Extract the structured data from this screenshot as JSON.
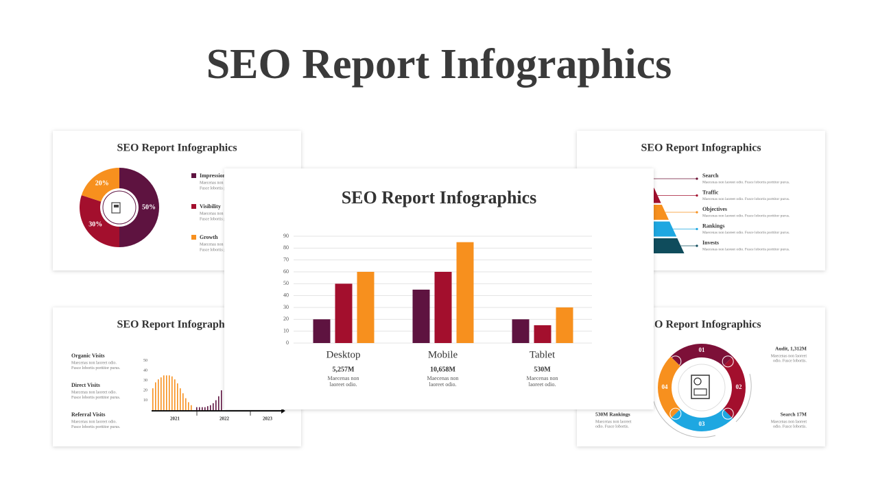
{
  "title": "SEO Report Infographics",
  "chart_data": [
    {
      "type": "bar",
      "title": "SEO Report Infographics",
      "categories": [
        "Desktop",
        "Mobile",
        "Tablet"
      ],
      "totals": [
        "5,257M",
        "10,658M",
        "530M"
      ],
      "notes": [
        [
          "Maecenas non",
          "laoreet odio."
        ],
        [
          "Maecenas non",
          "laoreet odio."
        ],
        [
          "Maecenas non",
          "laoreet odio."
        ]
      ],
      "series": [
        {
          "color": "#5e1340",
          "values": [
            20,
            45,
            20
          ]
        },
        {
          "color": "#a30f2d",
          "values": [
            50,
            60,
            15
          ]
        },
        {
          "color": "#f7901e",
          "values": [
            60,
            85,
            30
          ]
        }
      ],
      "ylim": [
        0,
        90
      ],
      "yticks": [
        0,
        10,
        20,
        30,
        40,
        50,
        60,
        70,
        80,
        90
      ],
      "grid": true
    },
    {
      "type": "pie",
      "title": "SEO Report Infographics",
      "categories": [
        "Impressions",
        "Visibility",
        "Growth"
      ],
      "values": [
        50,
        30,
        20
      ],
      "value_labels": [
        "50%",
        "30%",
        "20%"
      ],
      "colors": [
        "#5e1340",
        "#a30f2d",
        "#f7901e"
      ],
      "descriptions": [
        [
          "Maecenas non laoreet odio.",
          "Fusce lobortis porttitor purus."
        ],
        [
          "Maecenas non laoreet odio.",
          "Fusce lobortis porttitor purus."
        ],
        [
          "Maecenas non laoreet odio.",
          "Fusce lobortis porttitor purus."
        ]
      ]
    },
    {
      "type": "bar",
      "title": "SEO Report Infographics",
      "series": [
        {
          "color": "#f7901e",
          "values": [
            22,
            28,
            31,
            33,
            35,
            35,
            35,
            34,
            31,
            27,
            22,
            17,
            12,
            8,
            5
          ]
        },
        {
          "color": "#5e1340",
          "values": [
            3,
            3,
            3,
            3,
            4,
            5,
            7,
            10,
            14,
            20
          ]
        }
      ],
      "ylim": [
        0,
        50
      ],
      "yticks": [
        10,
        20,
        30,
        40,
        50
      ],
      "years": [
        "2021",
        "2022",
        "2023"
      ],
      "legend": [
        {
          "name": "Organic Visits",
          "text": [
            "Maecenas non laoreet odio.",
            "Fusce lobortis porttitor purus."
          ]
        },
        {
          "name": "Direct Visits",
          "text": [
            "Maecenas non laoreet odio.",
            "Fusce lobortis porttitor purus."
          ]
        },
        {
          "name": "Referral Visits",
          "text": [
            "Maecenas non laoreet odio.",
            "Fusce lobortis porttitor purus."
          ]
        }
      ]
    }
  ],
  "pyramid": {
    "title": "SEO Report Infographics",
    "items": [
      {
        "label": "Search",
        "text": "Maecenas non laoreet odio. Fusce lobortis porttitor purus.",
        "color": "#6a0f32"
      },
      {
        "label": "Traffic",
        "text": "Maecenas non laoreet odio. Fusce lobortis porttitor purus.",
        "color": "#a30f2d"
      },
      {
        "label": "Objectives",
        "text": "Maecenas non laoreet odio. Fusce lobortis porttitor purus.",
        "color": "#f7901e"
      },
      {
        "label": "Rankings",
        "text": "Maecenas non laoreet odio. Fusce lobortis porttitor purus.",
        "color": "#1ea7e1"
      },
      {
        "label": "Invests",
        "text": "Maecenas non laoreet odio. Fusce lobortis porttitor purus.",
        "color": "#0f4c5c"
      }
    ]
  },
  "cycle": {
    "title": "SEO Report Infographics",
    "steps": [
      "01",
      "02",
      "03",
      "04"
    ],
    "colors": [
      "#7d1038",
      "#a30f2d",
      "#1ea7e1",
      "#f7901e"
    ],
    "callouts": [
      {
        "label": "Audit, 1,312M",
        "text": [
          "Maecenas non laoreet",
          "odio. Fusce lobortis."
        ]
      },
      {
        "label": "Search 17M",
        "text": [
          "Maecenas non laoreet",
          "odio. Fusce lobortis."
        ]
      },
      {
        "label": "530M Rankings",
        "text": [
          "Maecenas non laoreet",
          "odio. Fusce lobortis."
        ]
      }
    ]
  }
}
